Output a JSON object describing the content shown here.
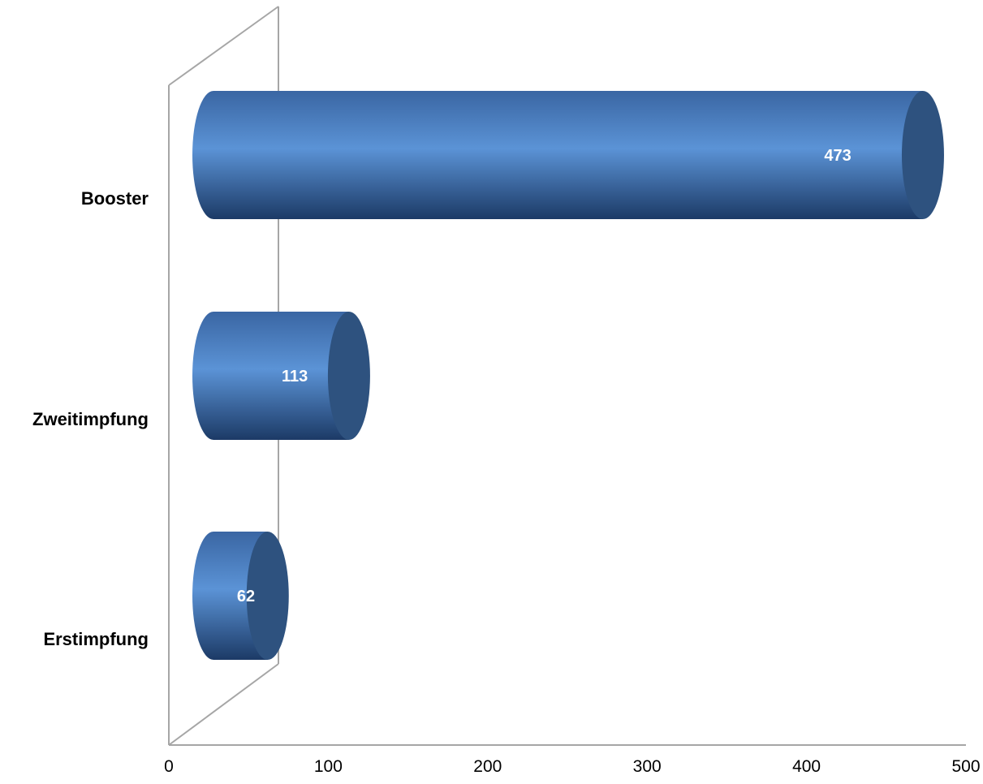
{
  "chart_data": {
    "type": "bar",
    "orientation": "horizontal",
    "style": "3d-cylinder",
    "categories": [
      "Booster",
      "Zweitimpfung",
      "Erstimpfung"
    ],
    "values": [
      473,
      113,
      62
    ],
    "xlim": [
      0,
      500
    ],
    "x_ticks": [
      0,
      100,
      200,
      300,
      400,
      500
    ],
    "grid": false,
    "legend": "none",
    "colors": {
      "bar_light": "#5b93d6",
      "bar_dark": "#1f3e6a",
      "bar_end": "#2e527f",
      "data_label": "#ffffff",
      "axis": "#a6a6a6"
    }
  }
}
